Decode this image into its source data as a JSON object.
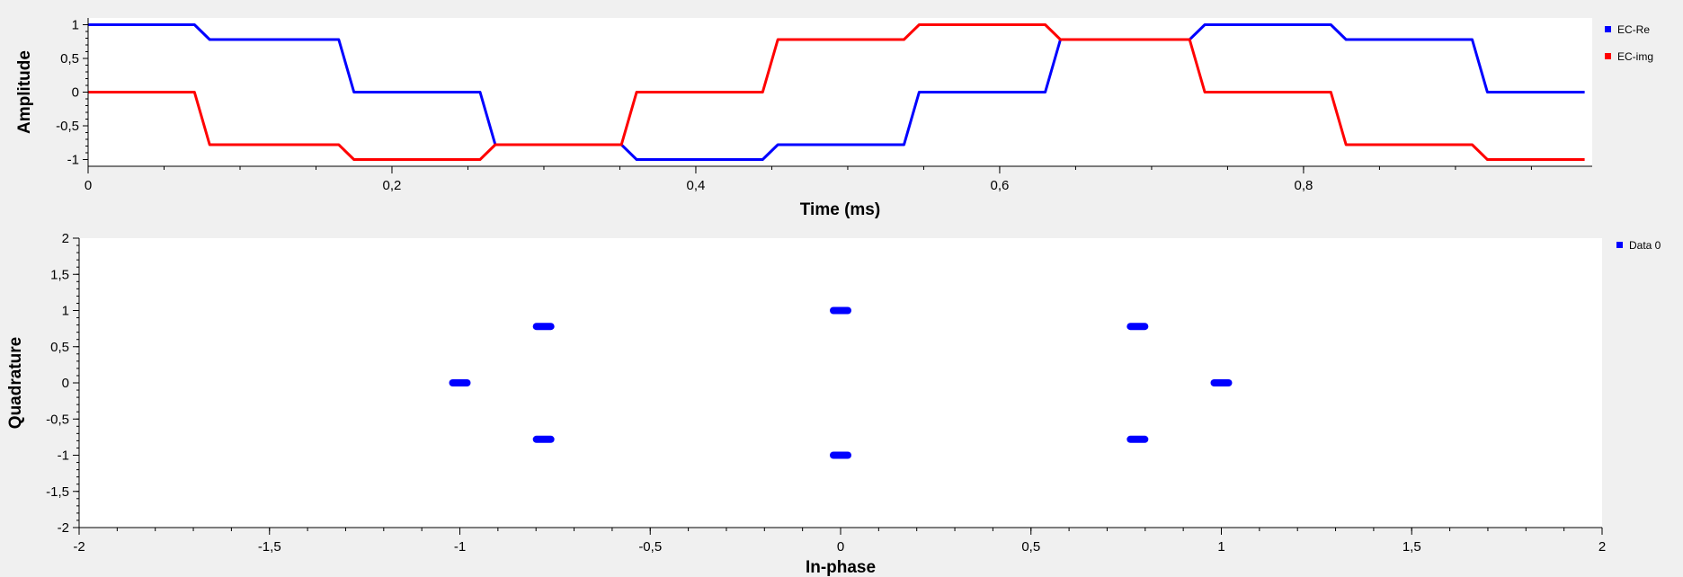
{
  "chart_data": [
    {
      "type": "line",
      "xlabel": "Time (ms)",
      "ylabel": "Amplitude",
      "xlim": [
        0,
        0.99
      ],
      "ylim": [
        -1.1,
        1.1
      ],
      "xticks": [
        0,
        0.2,
        0.4,
        0.6,
        0.8
      ],
      "xtick_labels": [
        "0",
        "0,2",
        "0,4",
        "0,6",
        "0,8"
      ],
      "yticks": [
        1,
        0.5,
        0,
        -0.5,
        -1
      ],
      "ytick_labels": [
        "1",
        "0,5",
        "0",
        "-0,5",
        "-1"
      ],
      "grid": false,
      "legend_placement": "right",
      "series": [
        {
          "name": "EC-Re",
          "color": "#0000ff",
          "x": [
            0,
            0.07,
            0.08,
            0.165,
            0.175,
            0.258,
            0.268,
            0.351,
            0.361,
            0.444,
            0.454,
            0.537,
            0.547,
            0.63,
            0.64,
            0.725,
            0.735,
            0.818,
            0.828,
            0.911,
            0.921,
            0.985
          ],
          "y": [
            1,
            1,
            0.78,
            0.78,
            0,
            0,
            -0.78,
            -0.78,
            -1,
            -1,
            -0.78,
            -0.78,
            0,
            0,
            0.78,
            0.78,
            1,
            1,
            0.78,
            0.78,
            0,
            0
          ]
        },
        {
          "name": "EC-img",
          "color": "#ff0000",
          "x": [
            0,
            0.07,
            0.08,
            0.165,
            0.175,
            0.258,
            0.268,
            0.351,
            0.361,
            0.444,
            0.454,
            0.537,
            0.547,
            0.63,
            0.64,
            0.725,
            0.735,
            0.818,
            0.828,
            0.911,
            0.921,
            0.985
          ],
          "y": [
            0,
            0,
            -0.78,
            -0.78,
            -1,
            -1,
            -0.78,
            -0.78,
            0,
            0,
            0.78,
            0.78,
            1,
            1,
            0.78,
            0.78,
            0,
            0,
            -0.78,
            -0.78,
            -1,
            -1
          ]
        }
      ]
    },
    {
      "type": "scatter",
      "xlabel": "In-phase",
      "ylabel": "Quadrature",
      "xlim": [
        -2,
        2
      ],
      "ylim": [
        -2,
        2
      ],
      "xticks": [
        -2,
        -1.5,
        -1,
        -0.5,
        0,
        0.5,
        1,
        1.5,
        2
      ],
      "xtick_labels": [
        "-2",
        "-1,5",
        "-1",
        "-0,5",
        "0",
        "0,5",
        "1",
        "1,5",
        "2"
      ],
      "yticks": [
        2,
        1.5,
        1,
        0.5,
        0,
        -0.5,
        -1,
        -1.5,
        -2
      ],
      "ytick_labels": [
        "2",
        "1,5",
        "1",
        "0,5",
        "0",
        "-0,5",
        "-1",
        "-1,5",
        "-2"
      ],
      "grid": false,
      "legend_placement": "top-right",
      "series": [
        {
          "name": "Data 0",
          "color": "#0000ff",
          "points": [
            {
              "x": 1,
              "y": 0
            },
            {
              "x": 0.78,
              "y": 0.78
            },
            {
              "x": 0,
              "y": 1
            },
            {
              "x": -0.78,
              "y": 0.78
            },
            {
              "x": -1,
              "y": 0
            },
            {
              "x": -0.78,
              "y": -0.78
            },
            {
              "x": 0,
              "y": -1
            },
            {
              "x": 0.78,
              "y": -0.78
            }
          ]
        }
      ]
    }
  ]
}
